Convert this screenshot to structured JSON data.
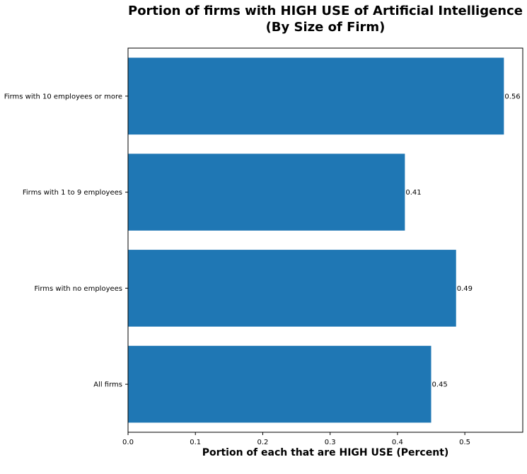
{
  "chart_data": {
    "type": "bar",
    "orientation": "horizontal",
    "title": "Portion of firms with HIGH USE of Artificial Intelligence",
    "subtitle": "(By Size of Firm)",
    "xlabel": "Portion of each that are HIGH USE (Percent)",
    "ylabel": "",
    "categories": [
      "Firms with 10 employees or more",
      "Firms with 1 to 9 employees",
      "Firms with no employees",
      "All firms"
    ],
    "values": [
      0.558,
      0.411,
      0.487,
      0.45
    ],
    "value_labels": [
      "0.56",
      "0.41",
      "0.49",
      "0.45"
    ],
    "xlim": [
      0,
      0.586
    ],
    "xticks": [
      "0.0",
      "0.1",
      "0.2",
      "0.3",
      "0.4",
      "0.5"
    ],
    "xtick_values": [
      0,
      0.1,
      0.2,
      0.3,
      0.4,
      0.5
    ],
    "bar_color": "#1f77b4",
    "grid": false
  }
}
